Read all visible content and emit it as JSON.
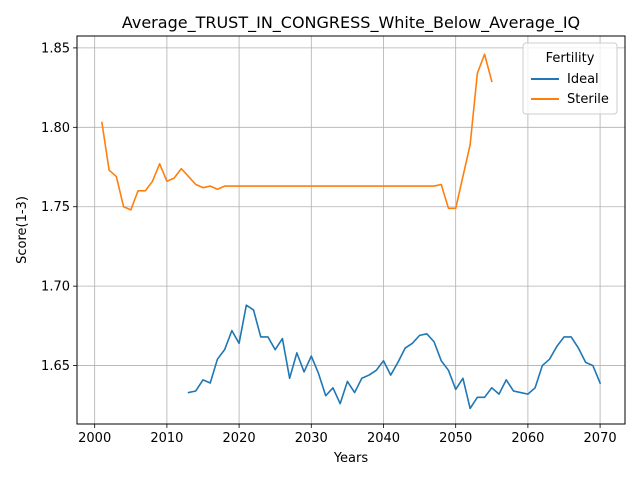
{
  "chart_data": {
    "type": "line",
    "title": "Average_TRUST_IN_CONGRESS_White_Below_Average_IQ",
    "xlabel": "Years",
    "ylabel": "Score(1-3)",
    "xlim": [
      1997.55,
      2073.45
    ],
    "ylim": [
      1.6132,
      1.8575
    ],
    "xticks": [
      2000,
      2010,
      2020,
      2030,
      2040,
      2050,
      2060,
      2070
    ],
    "yticks": [
      1.65,
      1.7,
      1.75,
      1.8,
      1.85
    ],
    "ytick_labels": [
      "1.65",
      "1.70",
      "1.75",
      "1.80",
      "1.85"
    ],
    "grid": true,
    "legend": {
      "title": "Fertility",
      "location": "top-right"
    },
    "series": [
      {
        "name": "Ideal",
        "color": "#1f77b4",
        "x": [
          2013,
          2014,
          2015,
          2016,
          2017,
          2018,
          2019,
          2020,
          2021,
          2022,
          2023,
          2024,
          2025,
          2026,
          2027,
          2028,
          2029,
          2030,
          2031,
          2032,
          2033,
          2034,
          2035,
          2036,
          2037,
          2038,
          2039,
          2040,
          2041,
          2042,
          2043,
          2044,
          2045,
          2046,
          2047,
          2048,
          2049,
          2050,
          2051,
          2052,
          2053,
          2054,
          2055,
          2056,
          2057,
          2058,
          2059,
          2060,
          2061,
          2062,
          2063,
          2064,
          2065,
          2066,
          2067,
          2068,
          2069,
          2070
        ],
        "y": [
          1.633,
          1.634,
          1.641,
          1.639,
          1.654,
          1.66,
          1.672,
          1.664,
          1.688,
          1.685,
          1.668,
          1.668,
          1.66,
          1.667,
          1.642,
          1.658,
          1.646,
          1.656,
          1.645,
          1.631,
          1.636,
          1.626,
          1.64,
          1.633,
          1.642,
          1.644,
          1.647,
          1.653,
          1.644,
          1.652,
          1.661,
          1.664,
          1.669,
          1.67,
          1.665,
          1.653,
          1.647,
          1.635,
          1.642,
          1.623,
          1.63,
          1.63,
          1.636,
          1.632,
          1.641,
          1.634,
          1.633,
          1.632,
          1.636,
          1.65,
          1.654,
          1.662,
          1.668,
          1.668,
          1.661,
          1.652,
          1.65,
          1.639
        ]
      },
      {
        "name": "Sterile",
        "color": "#ff7f0e",
        "x": [
          2001,
          2002,
          2003,
          2004,
          2005,
          2006,
          2007,
          2008,
          2009,
          2010,
          2011,
          2012,
          2013,
          2014,
          2015,
          2016,
          2017,
          2018,
          2019,
          2020,
          2021,
          2022,
          2023,
          2024,
          2025,
          2026,
          2027,
          2028,
          2029,
          2030,
          2031,
          2032,
          2033,
          2034,
          2035,
          2036,
          2037,
          2038,
          2039,
          2040,
          2041,
          2042,
          2043,
          2044,
          2045,
          2046,
          2047,
          2048,
          2049,
          2050,
          2051,
          2052,
          2053,
          2054,
          2055
        ],
        "y": [
          1.803,
          1.773,
          1.769,
          1.75,
          1.748,
          1.76,
          1.76,
          1.766,
          1.777,
          1.766,
          1.768,
          1.774,
          1.769,
          1.764,
          1.762,
          1.763,
          1.761,
          1.763,
          1.763,
          1.763,
          1.763,
          1.763,
          1.763,
          1.763,
          1.763,
          1.763,
          1.763,
          1.763,
          1.763,
          1.763,
          1.763,
          1.763,
          1.763,
          1.763,
          1.763,
          1.763,
          1.763,
          1.763,
          1.763,
          1.763,
          1.763,
          1.763,
          1.763,
          1.763,
          1.763,
          1.763,
          1.763,
          1.764,
          1.749,
          1.749,
          1.769,
          1.789,
          1.834,
          1.846,
          1.829
        ]
      }
    ]
  }
}
